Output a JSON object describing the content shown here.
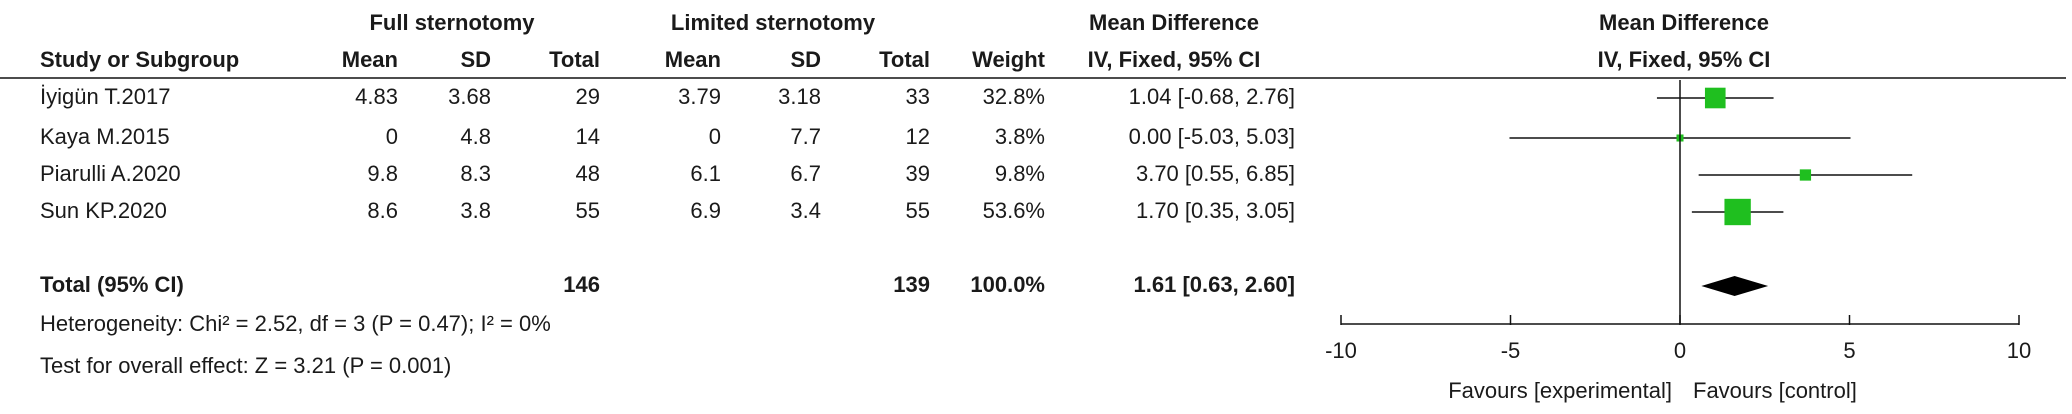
{
  "chart_data": {
    "type": "forest",
    "group_headers": [
      "Full sternotomy",
      "Limited sternotomy",
      "Mean Difference"
    ],
    "columns": [
      "Study or Subgroup",
      "Mean",
      "SD",
      "Total",
      "Mean",
      "SD",
      "Total",
      "Weight",
      "IV, Fixed, 95% CI"
    ],
    "plot_title": "Mean Difference",
    "plot_subtitle": "IV, Fixed, 95% CI",
    "studies": [
      {
        "name": "İyigün T.2017",
        "mean1": 4.83,
        "sd1": 3.68,
        "n1": 29,
        "mean2": 3.79,
        "sd2": 3.18,
        "n2": 33,
        "weight": 32.8,
        "weight_label": "32.8%",
        "md": 1.04,
        "lower": -0.68,
        "upper": 2.76,
        "ci_label": "1.04 [-0.68, 2.76]"
      },
      {
        "name": "Kaya M.2015",
        "mean1": 0,
        "sd1": 4.8,
        "n1": 14,
        "mean2": 0,
        "sd2": 7.7,
        "n2": 12,
        "weight": 3.8,
        "weight_label": "3.8%",
        "md": 0.0,
        "lower": -5.03,
        "upper": 5.03,
        "ci_label": "0.00 [-5.03, 5.03]"
      },
      {
        "name": "Piarulli A.2020",
        "mean1": 9.8,
        "sd1": 8.3,
        "n1": 48,
        "mean2": 6.1,
        "sd2": 6.7,
        "n2": 39,
        "weight": 9.8,
        "weight_label": "9.8%",
        "md": 3.7,
        "lower": 0.55,
        "upper": 6.85,
        "ci_label": "3.70 [0.55, 6.85]"
      },
      {
        "name": "Sun KP.2020",
        "mean1": 8.6,
        "sd1": 3.8,
        "n1": 55,
        "mean2": 6.9,
        "sd2": 3.4,
        "n2": 55,
        "weight": 53.6,
        "weight_label": "53.6%",
        "md": 1.7,
        "lower": 0.35,
        "upper": 3.05,
        "ci_label": "1.70 [0.35, 3.05]"
      }
    ],
    "total": {
      "name": "Total (95% CI)",
      "n1": 146,
      "n2": 139,
      "weight_label": "100.0%",
      "md": 1.61,
      "lower": 0.63,
      "upper": 2.6,
      "ci_label": "1.61 [0.63, 2.60]"
    },
    "heterogeneity": "Heterogeneity: Chi² = 2.52, df = 3 (P = 0.47); I² = 0%",
    "overall_effect": "Test for overall effect: Z = 3.21 (P = 0.001)",
    "xlim": [
      -10,
      10
    ],
    "xticks": [
      -10,
      -5,
      0,
      5,
      10
    ],
    "x_labels": [
      "Favours [experimental]",
      "Favours [control]"
    ],
    "color": "#1fbf1f"
  }
}
